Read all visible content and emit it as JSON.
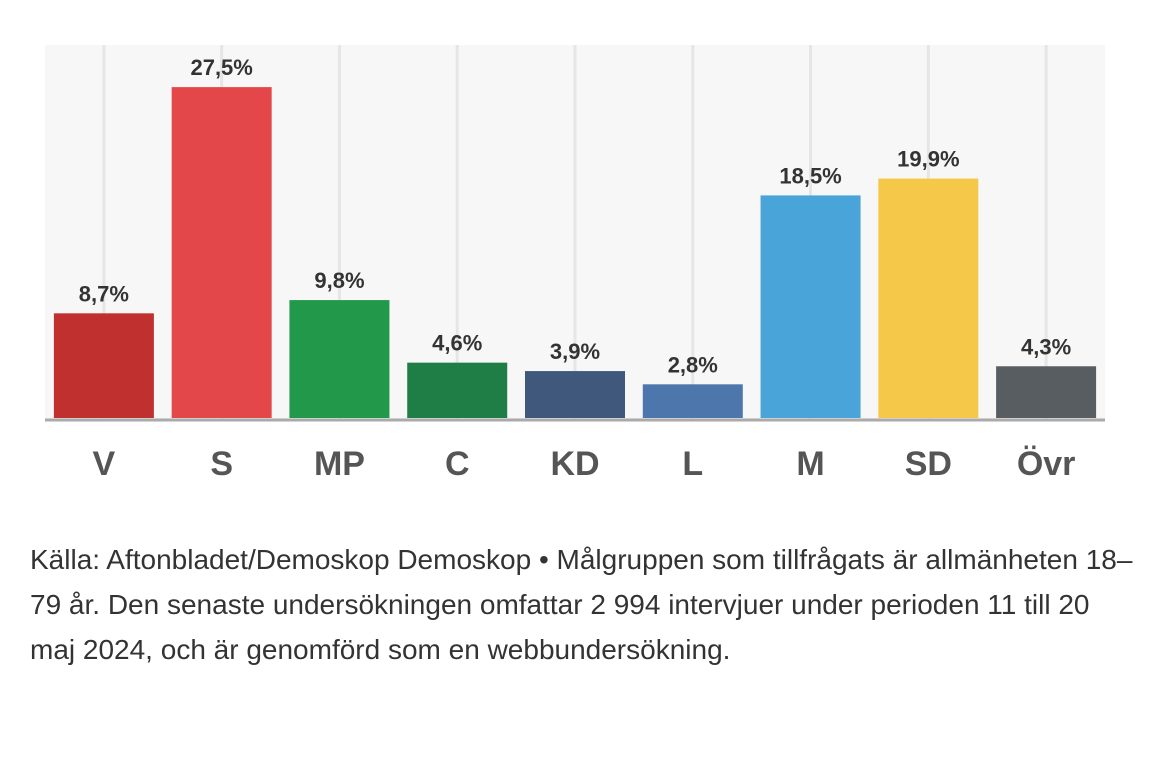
{
  "chart_data": {
    "type": "bar",
    "categories": [
      "V",
      "S",
      "MP",
      "C",
      "KD",
      "L",
      "M",
      "SD",
      "Övr"
    ],
    "values": [
      8.7,
      27.5,
      9.8,
      4.6,
      3.9,
      2.8,
      18.5,
      19.9,
      4.3
    ],
    "value_labels": [
      "8,7%",
      "27,5%",
      "9,8%",
      "4,6%",
      "3,9%",
      "2,8%",
      "18,5%",
      "19,9%",
      "4,3%"
    ],
    "colors": [
      "#c0302f",
      "#e4474a",
      "#22994a",
      "#1f7e46",
      "#3f587b",
      "#4d76ac",
      "#48a4d9",
      "#f5c84a",
      "#585d61"
    ],
    "ylim": [
      0,
      31
    ],
    "grid": "vertical",
    "legend": "none"
  },
  "caption": "Källa: Aftonbladet/Demoskop Demoskop • Målgruppen som tillfrågats är allmänheten 18–79 år. Den senaste undersökningen omfattar 2 994 intervjuer under perioden 11 till 20 maj 2024, och är genomförd som en webbundersökning."
}
